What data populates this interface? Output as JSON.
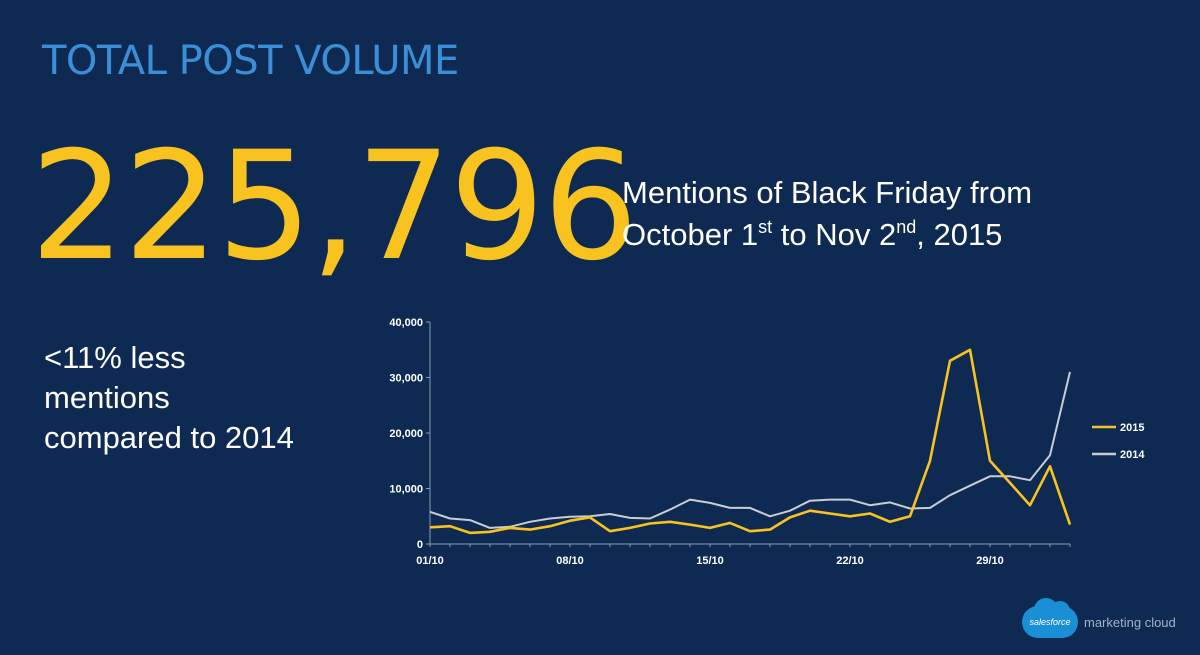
{
  "header": {
    "title": "TOTAL POST VOLUME"
  },
  "headline": {
    "number": "225,796",
    "line1": "Mentions of Black Friday from",
    "line2_part1": "October 1",
    "line2_sup1": "st",
    "line2_part2": " to Nov 2",
    "line2_sup2": "nd",
    "line2_part3": ", 2015"
  },
  "note": {
    "line1": "<11% less",
    "line2": "mentions",
    "line3": "compared to 2014"
  },
  "logo": {
    "cloud_text": "salesforce",
    "text": "marketing cloud",
    "icon": "salesforce-cloud-icon"
  },
  "colors": {
    "background": "#0f2a52",
    "title": "#3a8fd8",
    "accent": "#f9c31f",
    "series_2014": "#c9cdd3"
  },
  "chart_data": {
    "type": "line",
    "x": [
      "01/10",
      "02/10",
      "03/10",
      "04/10",
      "05/10",
      "06/10",
      "07/10",
      "08/10",
      "09/10",
      "10/10",
      "11/10",
      "12/10",
      "13/10",
      "14/10",
      "15/10",
      "16/10",
      "17/10",
      "18/10",
      "19/10",
      "20/10",
      "21/10",
      "22/10",
      "23/10",
      "24/10",
      "25/10",
      "26/10",
      "27/10",
      "28/10",
      "29/10",
      "30/10",
      "31/10",
      "01/11",
      "02/11"
    ],
    "xticks": [
      "01/10",
      "08/10",
      "15/10",
      "22/10",
      "29/10"
    ],
    "yticks": [
      "0",
      "10,000",
      "20,000",
      "30,000",
      "40,000"
    ],
    "ylim": [
      0,
      40000
    ],
    "legend_position": "right",
    "grid": false,
    "series": [
      {
        "name": "2015",
        "color": "#f9c31f",
        "values": [
          3000,
          3200,
          2000,
          2200,
          2900,
          2600,
          3200,
          4200,
          4800,
          2300,
          2900,
          3700,
          4000,
          3500,
          2900,
          3800,
          2300,
          2600,
          4800,
          6000,
          5500,
          5000,
          5500,
          4000,
          5000,
          15000,
          33000,
          35000,
          15000,
          11000,
          7000,
          14000,
          3500
        ]
      },
      {
        "name": "2014",
        "color": "#c9cdd3",
        "values": [
          5800,
          4600,
          4300,
          2900,
          3100,
          4000,
          4600,
          4900,
          5000,
          5400,
          4700,
          4600,
          6200,
          8000,
          7400,
          6500,
          6500,
          5000,
          6000,
          7800,
          8000,
          8000,
          7000,
          7500,
          6400,
          6500,
          8800,
          10500,
          12200,
          12200,
          11500,
          16000,
          31000
        ]
      }
    ]
  }
}
